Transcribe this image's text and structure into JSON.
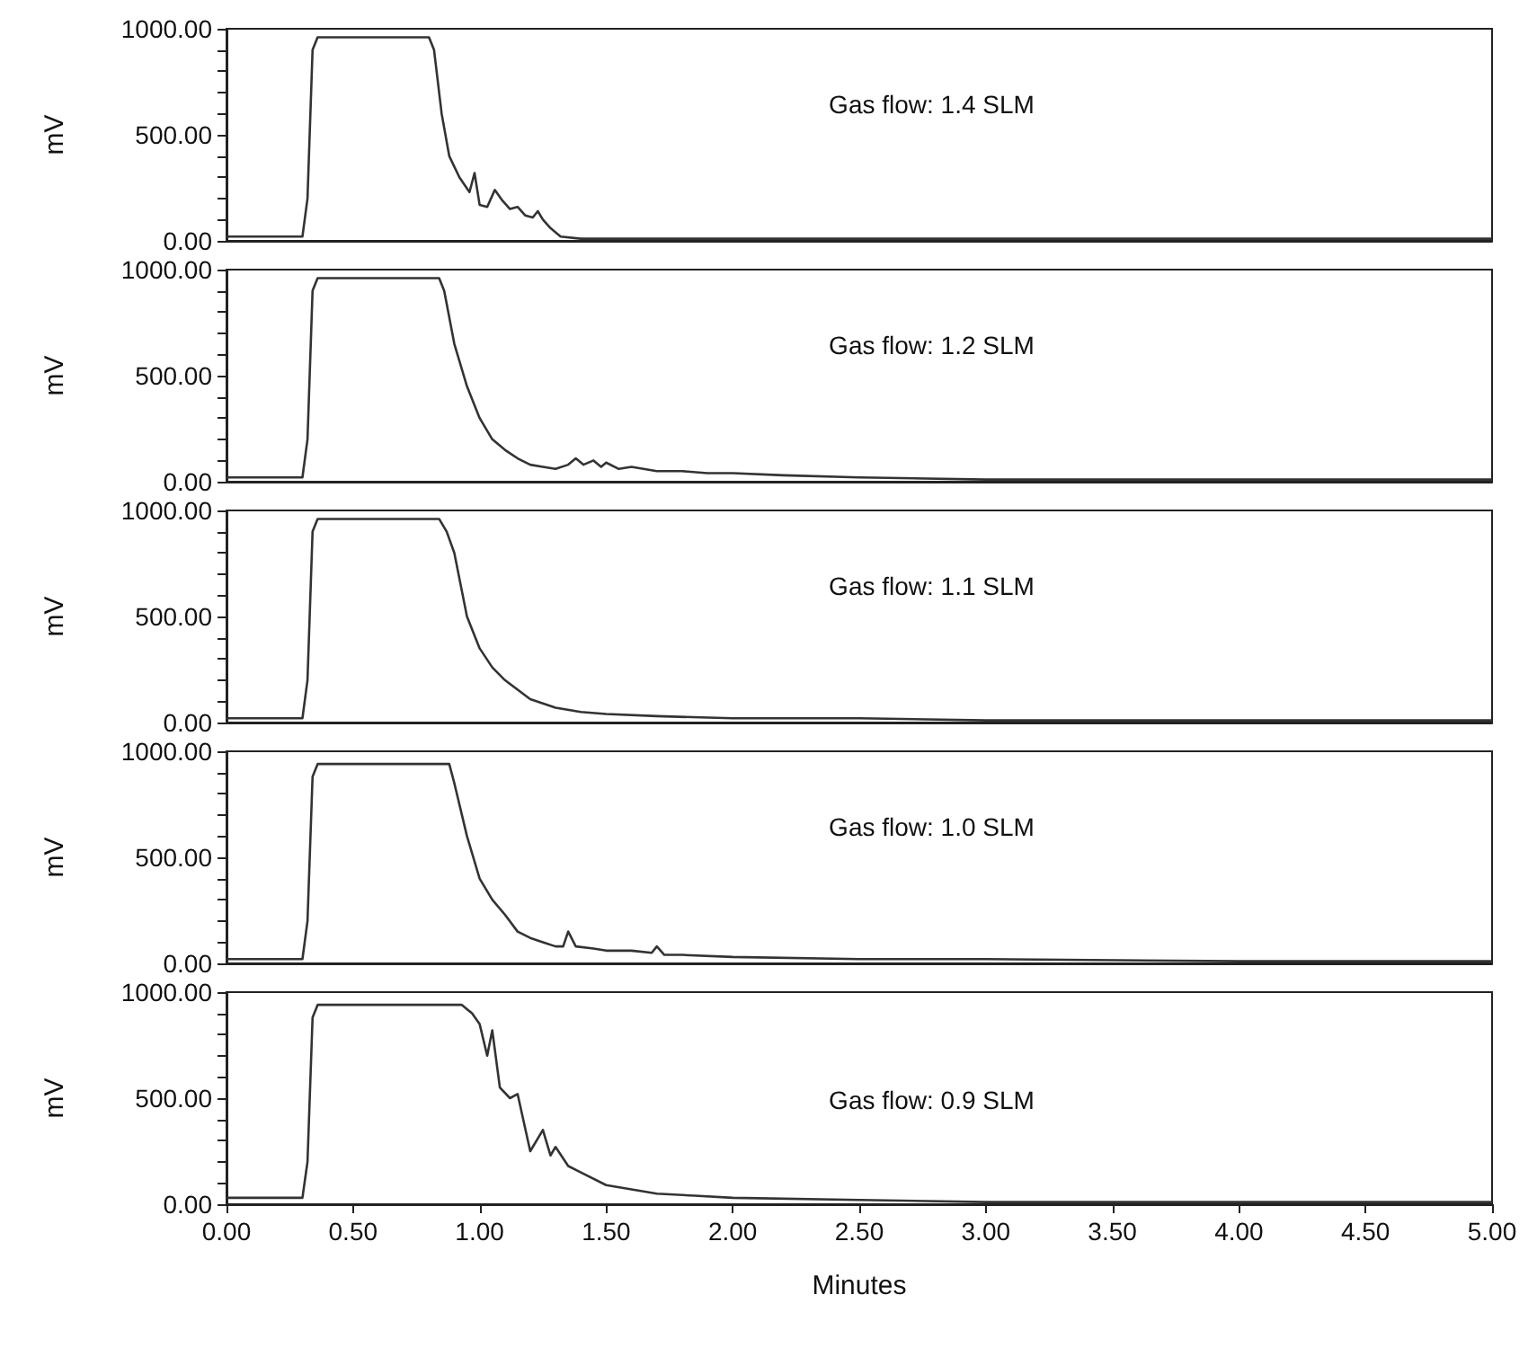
{
  "chart_data": [
    {
      "type": "line",
      "ylabel": "mV",
      "annotations": [
        "Gas flow: 1.4 SLM"
      ],
      "tick_labels": "y",
      "grid": false,
      "marker": "none",
      "line_style": "solid",
      "xlim": [
        0,
        5
      ],
      "ylim": [
        0,
        1000
      ],
      "yticks": [
        {
          "value": 0,
          "label": "0.00"
        },
        {
          "value": 100,
          "label": null
        },
        {
          "value": 200,
          "label": null
        },
        {
          "value": 300,
          "label": null
        },
        {
          "value": 400,
          "label": null
        },
        {
          "value": 500,
          "label": "500.00"
        },
        {
          "value": 600,
          "label": null
        },
        {
          "value": 700,
          "label": null
        },
        {
          "value": 800,
          "label": null
        },
        {
          "value": 900,
          "label": null
        },
        {
          "value": 1000,
          "label": "1000.00"
        }
      ],
      "series": [
        {
          "color": "#333333",
          "x": [
            0,
            0.3,
            0.32,
            0.34,
            0.36,
            0.8,
            0.82,
            0.85,
            0.88,
            0.92,
            0.96,
            0.98,
            1.0,
            1.03,
            1.06,
            1.09,
            1.12,
            1.15,
            1.18,
            1.21,
            1.23,
            1.25,
            1.28,
            1.32,
            1.4,
            1.6,
            2.0,
            3.0,
            4.0,
            5.0
          ],
          "values": [
            20,
            20,
            200,
            900,
            960,
            960,
            900,
            600,
            400,
            300,
            230,
            320,
            170,
            160,
            240,
            190,
            150,
            160,
            120,
            110,
            140,
            100,
            60,
            20,
            10,
            10,
            10,
            10,
            10,
            10
          ]
        }
      ]
    },
    {
      "type": "line",
      "ylabel": "mV",
      "annotations": [
        "Gas flow: 1.2 SLM"
      ],
      "tick_labels": "y",
      "grid": false,
      "marker": "none",
      "line_style": "solid",
      "xlim": [
        0,
        5
      ],
      "ylim": [
        0,
        1000
      ],
      "yticks": [
        {
          "value": 0,
          "label": "0.00"
        },
        {
          "value": 100,
          "label": null
        },
        {
          "value": 200,
          "label": null
        },
        {
          "value": 300,
          "label": null
        },
        {
          "value": 400,
          "label": null
        },
        {
          "value": 500,
          "label": "500.00"
        },
        {
          "value": 600,
          "label": null
        },
        {
          "value": 700,
          "label": null
        },
        {
          "value": 800,
          "label": null
        },
        {
          "value": 900,
          "label": null
        },
        {
          "value": 1000,
          "label": "1000.00"
        }
      ],
      "series": [
        {
          "color": "#333333",
          "x": [
            0,
            0.3,
            0.32,
            0.34,
            0.36,
            0.84,
            0.86,
            0.9,
            0.95,
            1.0,
            1.05,
            1.1,
            1.15,
            1.2,
            1.25,
            1.3,
            1.35,
            1.38,
            1.41,
            1.45,
            1.48,
            1.5,
            1.55,
            1.6,
            1.7,
            1.8,
            1.9,
            2.0,
            2.2,
            2.5,
            3.0,
            4.0,
            5.0
          ],
          "values": [
            20,
            20,
            200,
            900,
            960,
            960,
            900,
            650,
            450,
            300,
            200,
            150,
            110,
            80,
            70,
            60,
            80,
            110,
            80,
            100,
            70,
            90,
            60,
            70,
            50,
            50,
            40,
            40,
            30,
            20,
            10,
            10,
            10
          ]
        }
      ]
    },
    {
      "type": "line",
      "ylabel": "mV",
      "annotations": [
        "Gas flow: 1.1 SLM"
      ],
      "tick_labels": "y",
      "grid": false,
      "marker": "none",
      "line_style": "solid",
      "xlim": [
        0,
        5
      ],
      "ylim": [
        0,
        1000
      ],
      "yticks": [
        {
          "value": 0,
          "label": "0.00"
        },
        {
          "value": 100,
          "label": null
        },
        {
          "value": 200,
          "label": null
        },
        {
          "value": 300,
          "label": null
        },
        {
          "value": 400,
          "label": null
        },
        {
          "value": 500,
          "label": "500.00"
        },
        {
          "value": 600,
          "label": null
        },
        {
          "value": 700,
          "label": null
        },
        {
          "value": 800,
          "label": null
        },
        {
          "value": 900,
          "label": null
        },
        {
          "value": 1000,
          "label": "1000.00"
        }
      ],
      "series": [
        {
          "color": "#333333",
          "x": [
            0,
            0.3,
            0.32,
            0.34,
            0.36,
            0.84,
            0.87,
            0.9,
            0.95,
            1.0,
            1.05,
            1.1,
            1.2,
            1.3,
            1.4,
            1.5,
            1.7,
            2.0,
            2.5,
            3.0,
            4.0,
            5.0
          ],
          "values": [
            20,
            20,
            200,
            900,
            960,
            960,
            900,
            800,
            500,
            350,
            260,
            200,
            110,
            70,
            50,
            40,
            30,
            20,
            20,
            10,
            10,
            10
          ]
        }
      ]
    },
    {
      "type": "line",
      "ylabel": "mV",
      "annotations": [
        "Gas flow: 1.0 SLM"
      ],
      "tick_labels": "y",
      "grid": false,
      "marker": "none",
      "line_style": "solid",
      "xlim": [
        0,
        5
      ],
      "ylim": [
        0,
        1000
      ],
      "yticks": [
        {
          "value": 0,
          "label": "0.00"
        },
        {
          "value": 100,
          "label": null
        },
        {
          "value": 200,
          "label": null
        },
        {
          "value": 300,
          "label": null
        },
        {
          "value": 400,
          "label": null
        },
        {
          "value": 500,
          "label": "500.00"
        },
        {
          "value": 600,
          "label": null
        },
        {
          "value": 700,
          "label": null
        },
        {
          "value": 800,
          "label": null
        },
        {
          "value": 900,
          "label": null
        },
        {
          "value": 1000,
          "label": "1000.00"
        }
      ],
      "series": [
        {
          "color": "#333333",
          "x": [
            0,
            0.3,
            0.32,
            0.34,
            0.36,
            0.88,
            0.9,
            0.95,
            1.0,
            1.05,
            1.1,
            1.15,
            1.2,
            1.25,
            1.3,
            1.33,
            1.35,
            1.38,
            1.45,
            1.5,
            1.6,
            1.68,
            1.7,
            1.73,
            1.8,
            2.0,
            2.5,
            3.0,
            4.0,
            5.0
          ],
          "values": [
            20,
            20,
            200,
            880,
            940,
            940,
            850,
            600,
            400,
            300,
            230,
            150,
            120,
            100,
            80,
            80,
            150,
            80,
            70,
            60,
            60,
            50,
            80,
            40,
            40,
            30,
            20,
            20,
            10,
            10
          ]
        }
      ]
    },
    {
      "type": "line",
      "ylabel": "mV",
      "xlabel": "Minutes",
      "annotations": [
        "Gas flow: 0.9 SLM"
      ],
      "grid": false,
      "marker": "none",
      "line_style": "solid",
      "xlim": [
        0,
        5
      ],
      "xticks": [
        {
          "value": 0,
          "label": "0.00"
        },
        {
          "value": 0.5,
          "label": "0.50"
        },
        {
          "value": 1,
          "label": "1.00"
        },
        {
          "value": 1.5,
          "label": "1.50"
        },
        {
          "value": 2,
          "label": "2.00"
        },
        {
          "value": 2.5,
          "label": "2.50"
        },
        {
          "value": 3,
          "label": "3.00"
        },
        {
          "value": 3.5,
          "label": "3.50"
        },
        {
          "value": 4,
          "label": "4.00"
        },
        {
          "value": 4.5,
          "label": "4.50"
        },
        {
          "value": 5,
          "label": "5.00"
        }
      ],
      "ylim": [
        0,
        1000
      ],
      "yticks": [
        {
          "value": 0,
          "label": "0.00"
        },
        {
          "value": 100,
          "label": null
        },
        {
          "value": 200,
          "label": null
        },
        {
          "value": 300,
          "label": null
        },
        {
          "value": 400,
          "label": null
        },
        {
          "value": 500,
          "label": "500.00"
        },
        {
          "value": 600,
          "label": null
        },
        {
          "value": 700,
          "label": null
        },
        {
          "value": 800,
          "label": null
        },
        {
          "value": 900,
          "label": null
        },
        {
          "value": 1000,
          "label": "1000.00"
        }
      ],
      "series": [
        {
          "color": "#333333",
          "x": [
            0,
            0.3,
            0.32,
            0.34,
            0.36,
            0.93,
            0.95,
            0.97,
            1.0,
            1.03,
            1.05,
            1.08,
            1.12,
            1.15,
            1.2,
            1.25,
            1.28,
            1.3,
            1.35,
            1.4,
            1.5,
            1.6,
            1.7,
            1.85,
            2.0,
            2.5,
            3.0,
            4.0,
            5.0
          ],
          "values": [
            30,
            30,
            200,
            880,
            940,
            940,
            920,
            900,
            850,
            700,
            820,
            550,
            500,
            520,
            250,
            350,
            230,
            270,
            180,
            150,
            90,
            70,
            50,
            40,
            30,
            20,
            10,
            10,
            10
          ]
        }
      ]
    }
  ]
}
